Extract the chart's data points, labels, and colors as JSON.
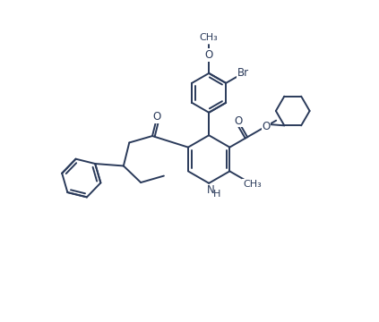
{
  "bg_color": "#ffffff",
  "line_color": "#2a3a5a",
  "line_width": 1.4,
  "font_size": 8.5,
  "figsize": [
    4.23,
    3.6
  ],
  "dpi": 100,
  "xlim": [
    0,
    10
  ],
  "ylim": [
    0,
    9
  ]
}
